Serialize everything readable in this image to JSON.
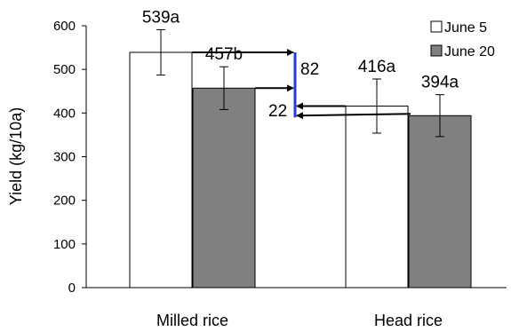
{
  "chart_data": {
    "type": "bar",
    "title": "",
    "xlabel": "",
    "ylabel": "Yield (kg/10a)",
    "ylim": [
      0,
      600
    ],
    "yticks": [
      0,
      100,
      200,
      300,
      400,
      500,
      600
    ],
    "grid": false,
    "legend_position": "top-right",
    "categories": [
      "Milled rice",
      "Head rice"
    ],
    "series": [
      {
        "name": "June 5",
        "color": "#ffffff",
        "values": [
          539,
          416
        ],
        "error": [
          52,
          62
        ],
        "labels": [
          "539a",
          "416a"
        ]
      },
      {
        "name": "June 20",
        "color": "#808080",
        "values": [
          457,
          394
        ],
        "error": [
          49,
          48
        ],
        "labels": [
          "457b",
          "394a"
        ]
      }
    ],
    "annotations": {
      "difference_label_top": "82",
      "difference_label_bottom": "22",
      "difference_bar_color": "#1f3fd6",
      "difference_bar_range": [
        390,
        539
      ]
    }
  }
}
